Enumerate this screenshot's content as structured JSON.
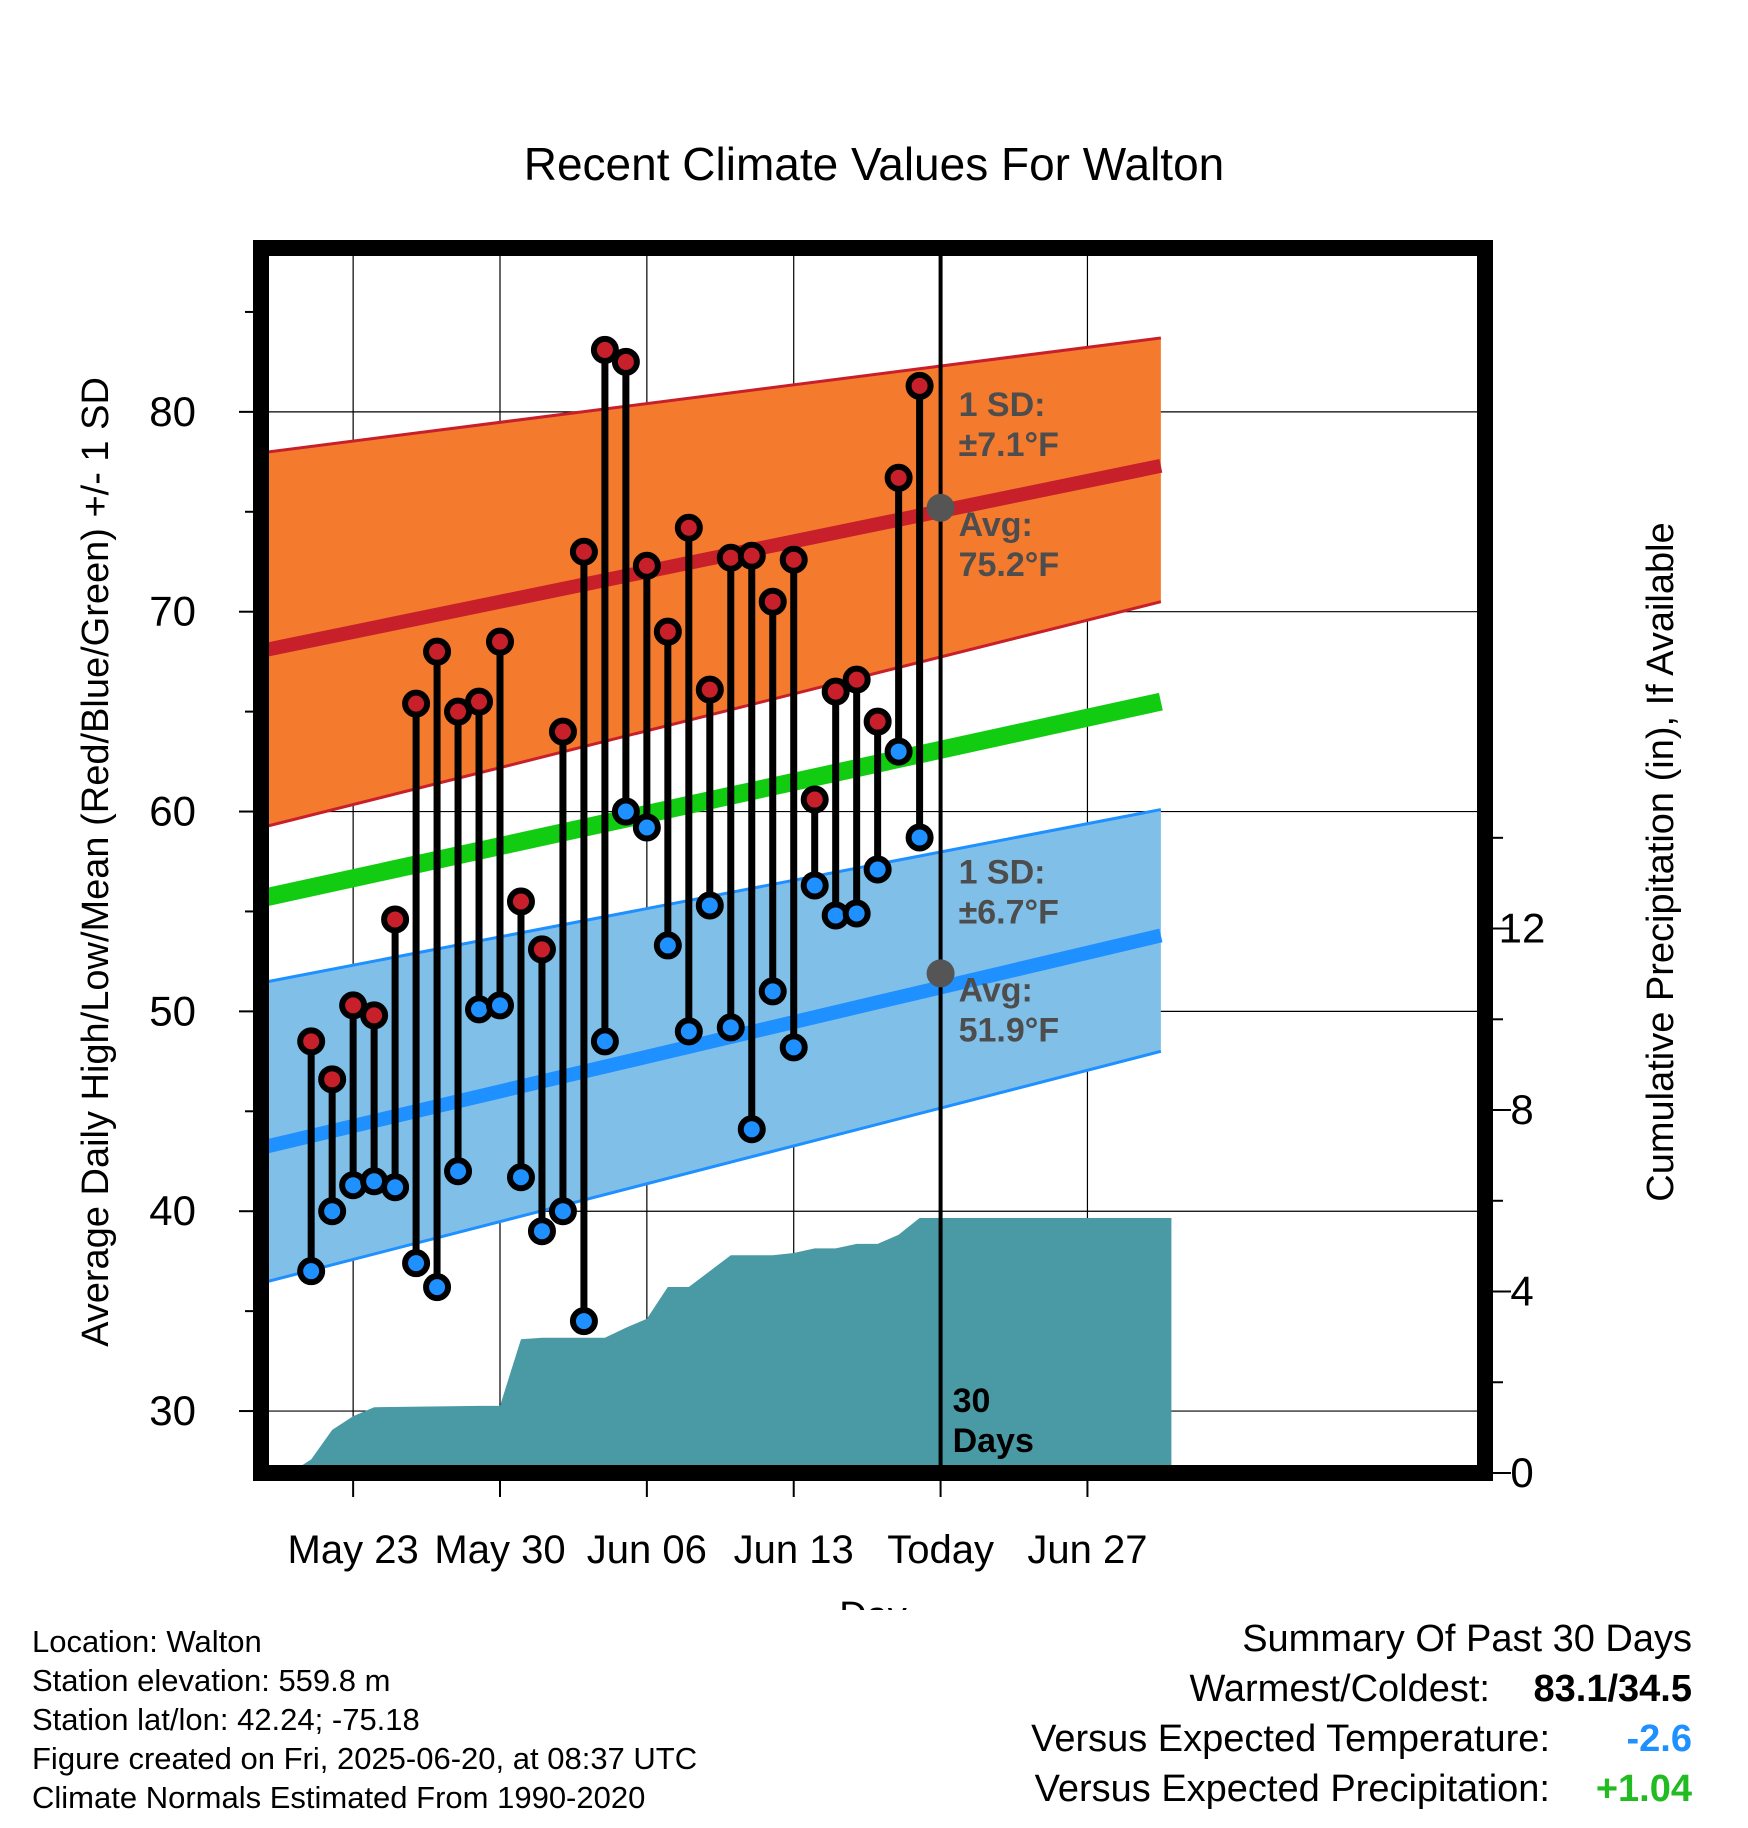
{
  "chart_data": {
    "type": "line",
    "title": "Recent Climate Values For Walton",
    "xlabel": "Day",
    "ylabel": "Average Daily High/Low/Mean (Red/Blue/Green) +/- 1 SD",
    "y2label": "Cumulative Precipitation (in), If Available",
    "x_range": [
      "2025-05-20",
      "2025-07-01"
    ],
    "ylim": [
      26.9,
      88.2
    ],
    "y2lim": [
      0,
      27.0
    ],
    "y_ticks": [
      30,
      40,
      50,
      60,
      70,
      80
    ],
    "y2_ticks": [
      0,
      4,
      8,
      12
    ],
    "x_ticks": [
      {
        "date": "2025-05-23",
        "label": "May 23"
      },
      {
        "date": "2025-05-30",
        "label": "May 30"
      },
      {
        "date": "2025-06-06",
        "label": "Jun 06"
      },
      {
        "date": "2025-06-13",
        "label": "Jun 13"
      },
      {
        "date": "2025-06-20",
        "label": "Today"
      },
      {
        "date": "2025-06-27",
        "label": "Jun 27"
      }
    ],
    "today": "2025-06-20",
    "window_label": [
      "30",
      "Days"
    ],
    "grid": true,
    "normal_high": {
      "mean": [
        [
          -2.5,
          67.8
        ],
        [
          41.5,
          77.3
        ]
      ],
      "upper": [
        [
          -2.5,
          77.8
        ],
        [
          41.5,
          83.7
        ]
      ],
      "lower": [
        [
          -2.5,
          58.9
        ],
        [
          41.5,
          70.5
        ]
      ]
    },
    "normal_low": {
      "mean": [
        [
          -2.5,
          42.9
        ],
        [
          41.5,
          53.8
        ]
      ],
      "upper": [
        [
          -2.5,
          51.2
        ],
        [
          41.5,
          60.1
        ]
      ],
      "lower": [
        [
          -2.5,
          36.1
        ],
        [
          41.5,
          48.0
        ]
      ]
    },
    "normal_mean": [
      [
        -2.5,
        55.4
      ],
      [
        41.5,
        65.5
      ]
    ],
    "high_annotation": {
      "sd_label": "1 SD:",
      "sd_value": "±7.1°F",
      "avg_label": "Avg:",
      "avg_value": "75.2°F",
      "avg": 75.2
    },
    "low_annotation": {
      "sd_label": "1 SD:",
      "sd_value": "±6.7°F",
      "avg_label": "Avg:",
      "avg_value": "51.9°F",
      "avg": 51.9
    },
    "series": [
      {
        "name": "High",
        "color": "#c8202a",
        "values": [
          [
            "2025-05-21",
            48.5
          ],
          [
            "2025-05-22",
            46.6
          ],
          [
            "2025-05-23",
            50.3
          ],
          [
            "2025-05-24",
            49.8
          ],
          [
            "2025-05-25",
            54.6
          ],
          [
            "2025-05-26",
            65.4
          ],
          [
            "2025-05-27",
            68.0
          ],
          [
            "2025-05-28",
            65.0
          ],
          [
            "2025-05-29",
            65.5
          ],
          [
            "2025-05-30",
            68.5
          ],
          [
            "2025-05-31",
            55.5
          ],
          [
            "2025-06-01",
            53.1
          ],
          [
            "2025-06-02",
            64.0
          ],
          [
            "2025-06-03",
            73.0
          ],
          [
            "2025-06-04",
            83.1
          ],
          [
            "2025-06-05",
            82.5
          ],
          [
            "2025-06-06",
            72.3
          ],
          [
            "2025-06-07",
            69.0
          ],
          [
            "2025-06-08",
            74.2
          ],
          [
            "2025-06-09",
            66.1
          ],
          [
            "2025-06-10",
            72.7
          ],
          [
            "2025-06-11",
            72.8
          ],
          [
            "2025-06-12",
            70.5
          ],
          [
            "2025-06-13",
            72.6
          ],
          [
            "2025-06-14",
            60.6
          ],
          [
            "2025-06-15",
            66.0
          ],
          [
            "2025-06-16",
            66.6
          ],
          [
            "2025-06-17",
            64.5
          ],
          [
            "2025-06-18",
            76.7
          ],
          [
            "2025-06-19",
            81.3
          ]
        ]
      },
      {
        "name": "Low",
        "color": "#1e90ff",
        "values": [
          [
            "2025-05-21",
            37.0
          ],
          [
            "2025-05-22",
            40.0
          ],
          [
            "2025-05-23",
            41.3
          ],
          [
            "2025-05-24",
            41.5
          ],
          [
            "2025-05-25",
            41.2
          ],
          [
            "2025-05-26",
            37.4
          ],
          [
            "2025-05-27",
            36.2
          ],
          [
            "2025-05-28",
            42.0
          ],
          [
            "2025-05-29",
            50.1
          ],
          [
            "2025-05-30",
            50.3
          ],
          [
            "2025-05-31",
            41.7
          ],
          [
            "2025-06-01",
            39.0
          ],
          [
            "2025-06-02",
            40.0
          ],
          [
            "2025-06-03",
            34.5
          ],
          [
            "2025-06-04",
            48.5
          ],
          [
            "2025-06-05",
            60.0
          ],
          [
            "2025-06-06",
            59.2
          ],
          [
            "2025-06-07",
            53.3
          ],
          [
            "2025-06-08",
            49.0
          ],
          [
            "2025-06-09",
            55.3
          ],
          [
            "2025-06-10",
            49.2
          ],
          [
            "2025-06-11",
            44.1
          ],
          [
            "2025-06-12",
            51.0
          ],
          [
            "2025-06-13",
            48.2
          ],
          [
            "2025-06-14",
            56.3
          ],
          [
            "2025-06-15",
            54.8
          ],
          [
            "2025-06-16",
            54.9
          ],
          [
            "2025-06-17",
            57.1
          ],
          [
            "2025-06-18",
            63.0
          ],
          [
            "2025-06-19",
            58.7
          ]
        ]
      }
    ],
    "precipitation": {
      "color": "#4a9aa5",
      "points": [
        [
          "2025-05-20",
          0.0
        ],
        [
          "2025-05-21",
          0.3
        ],
        [
          "2025-05-22",
          0.95
        ],
        [
          "2025-05-23",
          1.25
        ],
        [
          "2025-05-24",
          1.45
        ],
        [
          "2025-05-29",
          1.48
        ],
        [
          "2025-05-30",
          1.48
        ],
        [
          "2025-05-31",
          2.95
        ],
        [
          "2025-06-01",
          2.98
        ],
        [
          "2025-06-04",
          2.98
        ],
        [
          "2025-06-05",
          3.2
        ],
        [
          "2025-06-06",
          3.4
        ],
        [
          "2025-06-07",
          4.1
        ],
        [
          "2025-06-08",
          4.1
        ],
        [
          "2025-06-09",
          4.45
        ],
        [
          "2025-06-10",
          4.8
        ],
        [
          "2025-06-12",
          4.8
        ],
        [
          "2025-06-13",
          4.85
        ],
        [
          "2025-06-14",
          4.95
        ],
        [
          "2025-06-15",
          4.95
        ],
        [
          "2025-06-16",
          5.05
        ],
        [
          "2025-06-17",
          5.05
        ],
        [
          "2025-06-18",
          5.25
        ],
        [
          "2025-06-19",
          5.62
        ],
        [
          "2025-07-01",
          5.62
        ]
      ]
    }
  },
  "footer": {
    "location": "Location: Walton",
    "elevation": "Station elevation: 559.8 m",
    "latlon": "Station lat/lon: 42.24; -75.18",
    "created": "Figure created on Fri, 2025-06-20, at 08:37 UTC",
    "normals": "Climate Normals Estimated From 1990-2020"
  },
  "summary": {
    "title": "Summary Of Past 30 Days",
    "warm_cold_label": "Warmest/Coldest:",
    "warm_cold_value": "83.1/34.5",
    "temp_label": "Versus Expected Temperature:",
    "temp_value": "-2.6",
    "precip_label": "Versus Expected Precipitation:",
    "precip_value": "+1.04"
  }
}
